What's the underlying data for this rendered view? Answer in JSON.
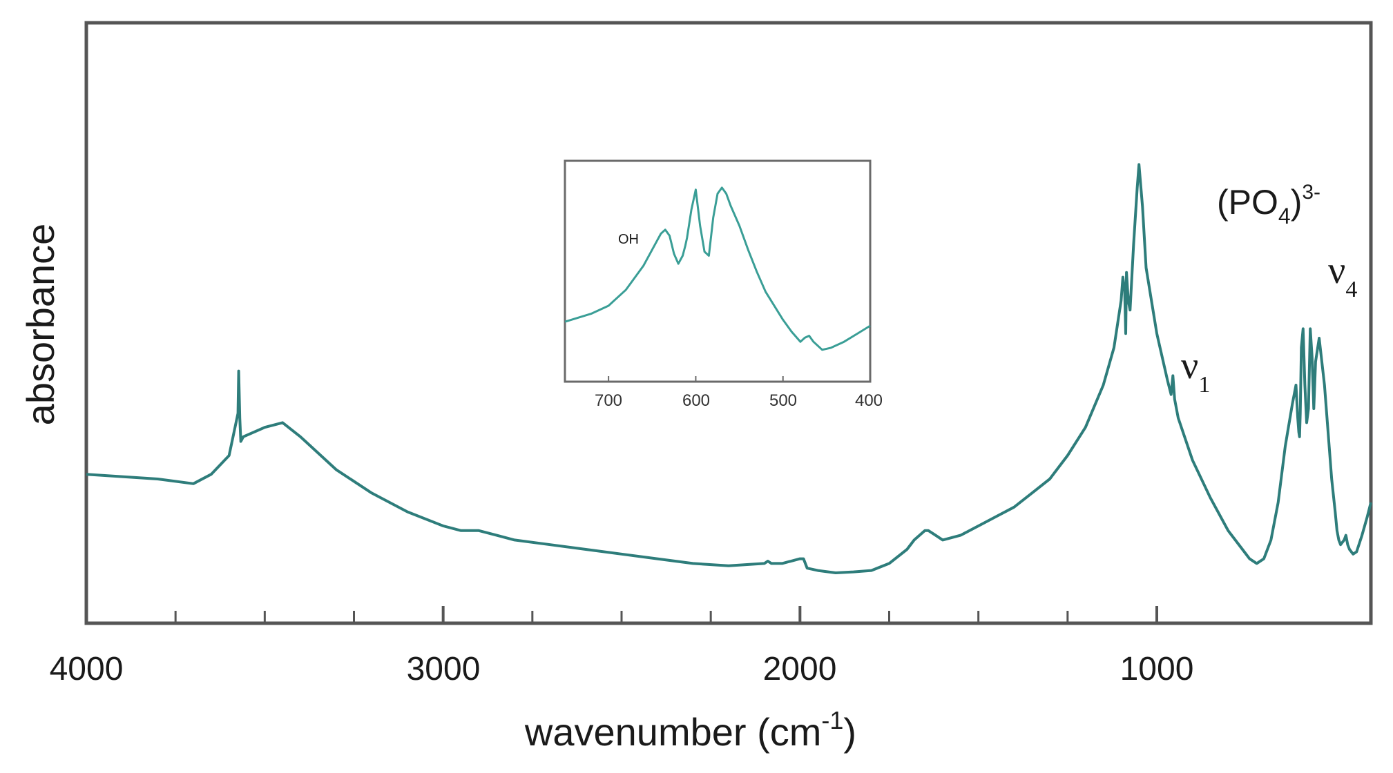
{
  "chart_data": [
    {
      "type": "line",
      "title": "",
      "xlabel": "wavenumber (cm",
      "xlabel_sup": "-1",
      "xlabel_close": ")",
      "ylabel": "absorbance",
      "xlim": [
        4000,
        400
      ],
      "ylim": [
        0,
        1
      ],
      "x_reversed": true,
      "x_ticks_major": [
        4000,
        3000,
        2000,
        1000
      ],
      "x_tick_labels": [
        "4000",
        "3000",
        "2000",
        "1000"
      ],
      "x_ticks_minor": [
        3750,
        3500,
        3250,
        2750,
        2500,
        2250,
        1750,
        1500,
        1250
      ],
      "y_ticks_shown": false,
      "grid": false,
      "line_color": "#2e7d7b",
      "series": [
        {
          "x": [
            4000,
            3800,
            3700,
            3650,
            3600,
            3575,
            3573,
            3570,
            3567,
            3560,
            3500,
            3450,
            3400,
            3300,
            3200,
            3100,
            3000,
            2950,
            2900,
            2850,
            2800,
            2700,
            2600,
            2500,
            2400,
            2300,
            2200,
            2100,
            2090,
            2080,
            2050,
            2000,
            1990,
            1980,
            1950,
            1900,
            1850,
            1800,
            1750,
            1700,
            1680,
            1650,
            1640,
            1620,
            1600,
            1550,
            1500,
            1450,
            1400,
            1350,
            1300,
            1250,
            1200,
            1150,
            1120,
            1100,
            1095,
            1090,
            1087,
            1085,
            1080,
            1075,
            1065,
            1055,
            1050,
            1040,
            1030,
            1000,
            970,
            960,
            955,
            950,
            940,
            900,
            850,
            800,
            760,
            740,
            720,
            700,
            680,
            660,
            640,
            620,
            610,
            605,
            602,
            600,
            598,
            595,
            590,
            585,
            580,
            575,
            570,
            565,
            560,
            555,
            545,
            530,
            520,
            510,
            500,
            495,
            490,
            485,
            475,
            470,
            465,
            460,
            450,
            440,
            425,
            410,
            400
          ],
          "y": [
            0.21,
            0.2,
            0.19,
            0.21,
            0.25,
            0.34,
            0.43,
            0.33,
            0.28,
            0.29,
            0.31,
            0.32,
            0.29,
            0.22,
            0.17,
            0.13,
            0.1,
            0.09,
            0.09,
            0.08,
            0.07,
            0.06,
            0.05,
            0.04,
            0.03,
            0.02,
            0.015,
            0.02,
            0.025,
            0.02,
            0.02,
            0.03,
            0.03,
            0.01,
            0.005,
            0.0,
            0.002,
            0.005,
            0.02,
            0.05,
            0.07,
            0.09,
            0.09,
            0.08,
            0.07,
            0.08,
            0.1,
            0.12,
            0.14,
            0.17,
            0.2,
            0.25,
            0.31,
            0.4,
            0.48,
            0.58,
            0.63,
            0.6,
            0.51,
            0.64,
            0.58,
            0.56,
            0.7,
            0.82,
            0.87,
            0.78,
            0.65,
            0.51,
            0.41,
            0.38,
            0.42,
            0.37,
            0.33,
            0.24,
            0.16,
            0.09,
            0.05,
            0.03,
            0.02,
            0.03,
            0.07,
            0.15,
            0.27,
            0.36,
            0.4,
            0.33,
            0.3,
            0.29,
            0.34,
            0.48,
            0.52,
            0.4,
            0.32,
            0.35,
            0.52,
            0.46,
            0.35,
            0.45,
            0.5,
            0.4,
            0.3,
            0.2,
            0.13,
            0.09,
            0.07,
            0.06,
            0.07,
            0.08,
            0.06,
            0.05,
            0.04,
            0.045,
            0.08,
            0.12,
            0.15
          ]
        }
      ],
      "annotations": [
        {
          "text_a": "(PO",
          "sub": "4",
          "text_b": ")",
          "sup": "3-"
        },
        {
          "text": "ν",
          "sub": "4"
        },
        {
          "text": "ν",
          "sub": "1"
        }
      ]
    },
    {
      "type": "line",
      "title": "",
      "xlim": [
        750,
        400
      ],
      "ylim": [
        0,
        1
      ],
      "x_reversed": true,
      "x_ticks": [
        700,
        600,
        500,
        400
      ],
      "x_tick_labels": [
        "700",
        "600",
        "500",
        "400"
      ],
      "line_color": "#3a9e96",
      "annotations": [
        {
          "text": "OH"
        }
      ],
      "series": [
        {
          "x": [
            750,
            720,
            700,
            680,
            660,
            645,
            640,
            635,
            630,
            625,
            620,
            615,
            612,
            610,
            605,
            600,
            595,
            590,
            585,
            580,
            575,
            570,
            565,
            560,
            550,
            540,
            530,
            520,
            500,
            490,
            480,
            475,
            470,
            465,
            455,
            445,
            430,
            415,
            400
          ],
          "y": [
            0.22,
            0.26,
            0.3,
            0.38,
            0.5,
            0.62,
            0.66,
            0.68,
            0.65,
            0.56,
            0.51,
            0.55,
            0.6,
            0.64,
            0.78,
            0.88,
            0.7,
            0.57,
            0.55,
            0.74,
            0.86,
            0.89,
            0.86,
            0.8,
            0.7,
            0.58,
            0.47,
            0.37,
            0.23,
            0.17,
            0.12,
            0.14,
            0.15,
            0.12,
            0.08,
            0.09,
            0.12,
            0.16,
            0.2
          ]
        }
      ]
    }
  ]
}
